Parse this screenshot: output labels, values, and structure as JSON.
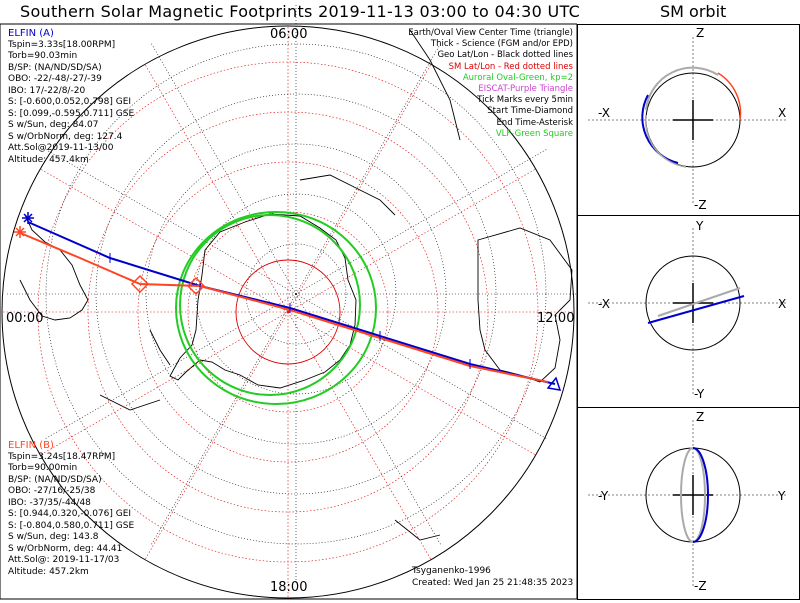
{
  "title": "Southern Solar Magnetic Footprints 2019-11-13 03:00 to 04:30 UTC",
  "sm_title": "SM orbit",
  "main_plot": {
    "time_labels": {
      "top": "06:00",
      "left": "00:00",
      "right": "12:00",
      "bottom": "18:00"
    },
    "colors": {
      "elfin_a": "#0000cc",
      "elfin_b": "#ff4422",
      "auroral_oval": "#22cc22",
      "sm_grid": "#dd0000",
      "geo_grid": "#000000"
    }
  },
  "elfin_a": {
    "lines": [
      "ELFIN (A)",
      "Tspin=3.33s[18.00RPM]",
      "Torb=90.03min",
      "B/SP: (NA/ND/SD/SA)",
      "OBO: -22/-48/-27/-39",
      "IBO: 17/-22/8/-20",
      "S: [-0.600,0.052,0.798] GEI",
      "S: [0.099,-0.595,0.711] GSE",
      "S w/Sun, deg: 84.07",
      "S w/OrbNorm, deg: 127.4",
      "Att.Sol@2019-11-13/00",
      "Altitude: 457.4km"
    ],
    "color": "#0000cc"
  },
  "elfin_b": {
    "lines": [
      "ELFIN (B)",
      "Tspin=3.24s[18.47RPM]",
      "Torb=90.00min",
      "B/SP: (NA/ND/SD/SA)",
      "OBO: -27/16/-25/38",
      "IBO: -37/35/-44/48",
      "S: [0.944,0.320,-0.076] GEI",
      "S: [-0.804,0.580,0.711] GSE",
      "S w/Sun, deg: 143.8",
      "S w/OrbNorm, deg: 44.41",
      "Att.Sol@: 2019-11-17/03",
      "Altitude: 457.2km"
    ],
    "color": "#ff4422"
  },
  "legend": [
    {
      "text": "Earth/Oval View Center Time (triangle)",
      "color": "#000000"
    },
    {
      "text": "Thick - Science (FGM and/or EPD)",
      "color": "#000000"
    },
    {
      "text": "Geo Lat/Lon - Black dotted lines",
      "color": "#000000"
    },
    {
      "text": "SM Lat/Lon - Red dotted lines",
      "color": "#dd0000"
    },
    {
      "text": "Auroral Oval-Green, kp=2",
      "color": "#22cc22"
    },
    {
      "text": "EISCAT-Purple Triangle",
      "color": "#cc44cc"
    },
    {
      "text": "Tick Marks every 5min",
      "color": "#000000"
    },
    {
      "text": "Start Time-Diamond",
      "color": "#000000"
    },
    {
      "text": "End Time-Asterisk",
      "color": "#000000"
    },
    {
      "text": "VLF-Green Square",
      "color": "#22cc22"
    }
  ],
  "footer": {
    "author": "Tsyganenko-1996",
    "created": "Created: Wed Jan 25 21:48:35 2023"
  },
  "sm_panels": [
    {
      "top": "Z",
      "bottom": "-Z",
      "left": "-X",
      "right": "X"
    },
    {
      "top": "Y",
      "bottom": "-Y",
      "left": "-X",
      "right": "X"
    },
    {
      "top": "Z",
      "bottom": "-Z",
      "left": "-Y",
      "right": "Y"
    }
  ]
}
